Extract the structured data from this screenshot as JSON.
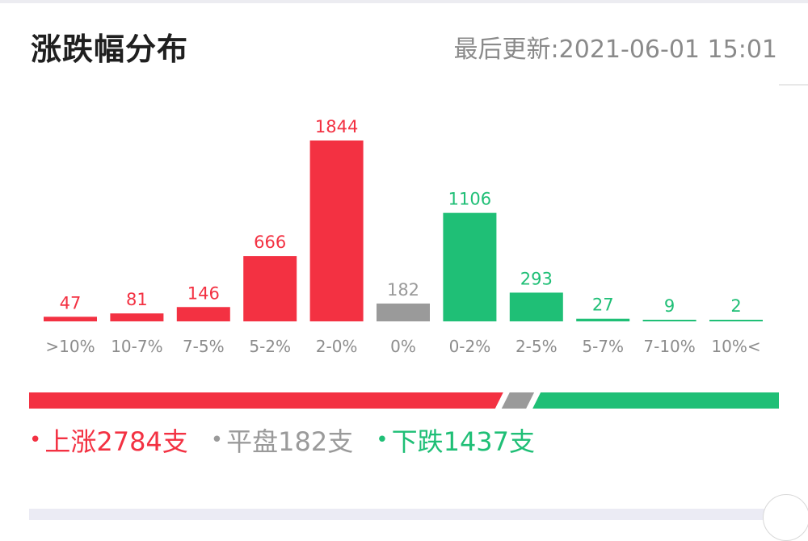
{
  "header": {
    "title": "涨跌幅分布",
    "updated_label": "最后更新:",
    "updated_time": "2021-06-01 15:01"
  },
  "colors": {
    "up": "#f33142",
    "flat": "#9a9a9a",
    "down": "#1fbf76"
  },
  "chart_data": {
    "type": "bar",
    "categories": [
      ">10%",
      "10-7%",
      "7-5%",
      "5-2%",
      "2-0%",
      "0%",
      "0-2%",
      "2-5%",
      "5-7%",
      "7-10%",
      "10%<"
    ],
    "values": [
      47,
      81,
      146,
      666,
      1844,
      182,
      1106,
      293,
      27,
      9,
      2
    ],
    "bar_groups": [
      "up",
      "up",
      "up",
      "up",
      "up",
      "flat",
      "down",
      "down",
      "down",
      "down",
      "down"
    ],
    "data_labels": true,
    "ylim": [
      0,
      1844
    ]
  },
  "summary": {
    "up_count": 2784,
    "flat_count": 182,
    "down_count": 1437,
    "up_text": "上涨2784支",
    "flat_text": "平盘182支",
    "down_text": "下跌1437支",
    "bullet": "•"
  }
}
